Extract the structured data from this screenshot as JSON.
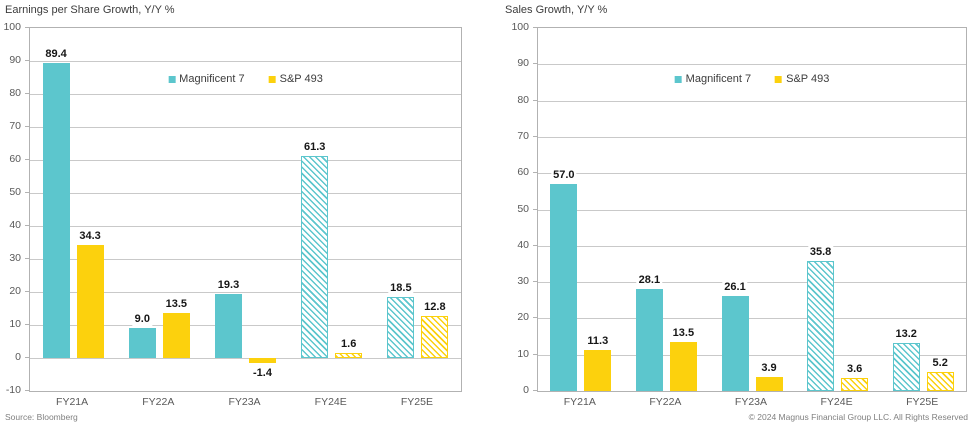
{
  "chart_data": [
    {
      "type": "bar",
      "title": "Earnings per Share Growth, Y/Y %",
      "categories": [
        "FY21A",
        "FY22A",
        "FY23A",
        "FY24E",
        "FY25E"
      ],
      "estimates": [
        false,
        false,
        false,
        true,
        true
      ],
      "series": [
        {
          "name": "Magnificent 7",
          "color": "#5CC6CD",
          "values": [
            89.4,
            9.0,
            19.3,
            61.3,
            18.5
          ]
        },
        {
          "name": "S&P 493",
          "color": "#FCD10D",
          "values": [
            34.3,
            13.5,
            -1.4,
            1.6,
            12.8
          ]
        }
      ],
      "ylim": [
        -10,
        100
      ],
      "ytick_step": 10,
      "grid": true,
      "legend_position": "top-center"
    },
    {
      "type": "bar",
      "title": "Sales Growth, Y/Y %",
      "categories": [
        "FY21A",
        "FY22A",
        "FY23A",
        "FY24E",
        "FY25E"
      ],
      "estimates": [
        false,
        false,
        false,
        true,
        true
      ],
      "series": [
        {
          "name": "Magnificent 7",
          "color": "#5CC6CD",
          "values": [
            57.0,
            28.1,
            26.1,
            35.8,
            13.2
          ]
        },
        {
          "name": "S&P 493",
          "color": "#FCD10D",
          "values": [
            11.3,
            13.5,
            3.9,
            3.6,
            5.2
          ]
        }
      ],
      "ylim": [
        0,
        100
      ],
      "ytick_step": 10,
      "grid": true,
      "legend_position": "top-center"
    }
  ],
  "footer": {
    "source": "Source: Bloomberg",
    "copyright": "© 2024 Magnus Financial Group LLC. All Rights Reserved"
  }
}
